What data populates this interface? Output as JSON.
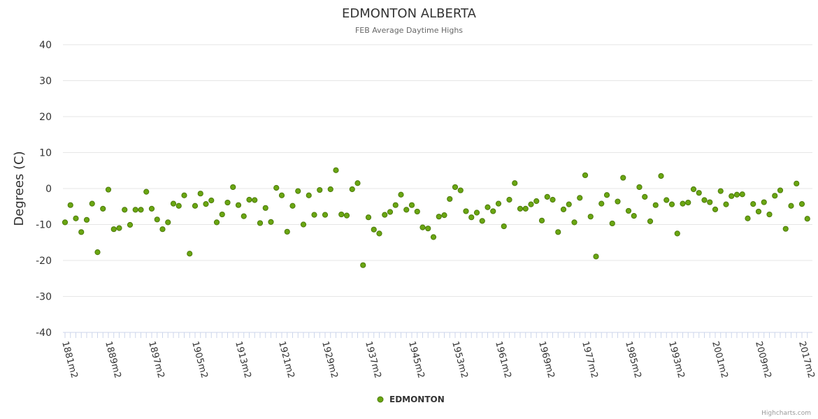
{
  "chart_data": {
    "type": "scatter",
    "title": "EDMONTON ALBERTA",
    "subtitle": "FEB Average Daytime Highs",
    "ylabel": "Degrees (C)",
    "xlabel": "",
    "ylim": [
      -40,
      40
    ],
    "yticks": [
      40,
      30,
      20,
      10,
      0,
      -10,
      -20,
      -30,
      -40
    ],
    "x_start_year": 1881,
    "xtick_labels": [
      "1881m2",
      "1889m2",
      "1897m2",
      "1905m2",
      "1913m2",
      "1921m2",
      "1929m2",
      "1937m2",
      "1945m2",
      "1953m2",
      "1961m2",
      "1969m2",
      "1977m2",
      "1985m2",
      "1993m2",
      "2001m2",
      "2009m2",
      "2017m2"
    ],
    "series": [
      {
        "name": "EDMONTON",
        "color": "#6aa612",
        "values": [
          -9.4,
          -4.6,
          -8.3,
          -12.1,
          -8.7,
          -4.2,
          -17.7,
          -5.6,
          -0.3,
          -11.3,
          -11,
          -5.9,
          -10.1,
          -5.9,
          -5.9,
          -0.9,
          -5.6,
          -8.6,
          -11.3,
          -9.4,
          -4.2,
          -4.8,
          -1.9,
          -18.1,
          -4.8,
          -1.4,
          -4.3,
          -3.3,
          -9.4,
          -7.2,
          -3.9,
          0.4,
          -4.6,
          -7.7,
          -3.1,
          -3.2,
          -9.6,
          -5.4,
          -9.3,
          0.2,
          -1.9,
          -12,
          -4.8,
          -0.7,
          -10,
          -1.9,
          -7.3,
          -0.4,
          -7.3,
          -0.2,
          5.1,
          -7.2,
          -7.5,
          -0.2,
          1.5,
          -21.3,
          -8,
          -11.4,
          -12.5,
          -7.3,
          -6.5,
          -4.6,
          -1.7,
          -5.9,
          -4.6,
          -6.4,
          -10.8,
          -11.1,
          -13.5,
          -7.8,
          -7.4,
          -2.9,
          0.4,
          -0.5,
          -6.3,
          -8,
          -6.7,
          -9,
          -5.2,
          -6.3,
          -4.2,
          -10.5,
          -3.1,
          1.5,
          -5.6,
          -5.6,
          -4.4,
          -3.5,
          -8.9,
          -2.3,
          -3.1,
          -12.1,
          -5.8,
          -4.4,
          -9.4,
          -2.6,
          3.7,
          -7.8,
          -18.9,
          -4.2,
          -1.8,
          -9.7,
          -3.6,
          3,
          -6.2,
          -7.6,
          0.4,
          -2.3,
          -9.1,
          -4.6,
          3.5,
          -3.2,
          -4.4,
          -12.5,
          -4.2,
          -3.9,
          -0.2,
          -1.2,
          -3.2,
          -3.8,
          -5.8,
          -0.7,
          -4.4,
          -2.1,
          -1.7,
          -1.6,
          -8.3,
          -4.3,
          -6.4,
          -3.8,
          -7.2,
          -2,
          -0.5,
          -11.2,
          -4.8,
          1.4,
          -4.3,
          -8.4
        ]
      }
    ],
    "legend": {
      "position": "bottom-center"
    }
  },
  "credits": "Highcharts.com"
}
